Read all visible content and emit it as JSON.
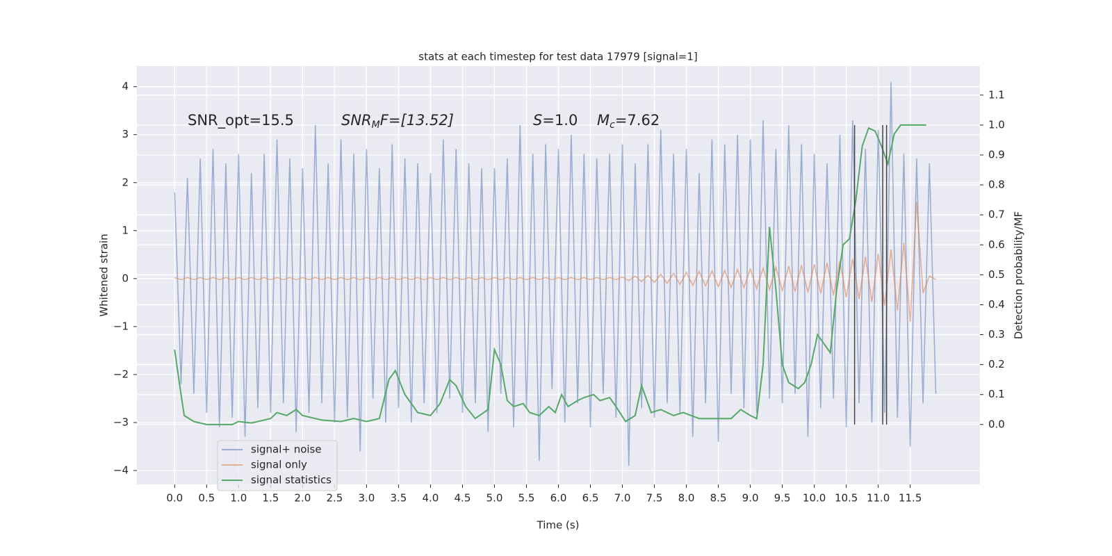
{
  "chart_data": {
    "type": "line",
    "title": "stats at each timestep for test data 17979 [signal=1]",
    "xlabel": "Time (s)",
    "ylabel": "Whitened strain",
    "y2label": "Detection probability/MF",
    "xlim": [
      -0.59,
      12.59
    ],
    "ylim": [
      -4.29,
      4.43
    ],
    "y2lim": [
      -0.2,
      1.197
    ],
    "xticks": [
      {
        "value": 0,
        "label": "0.0"
      },
      0.5,
      {
        "value": 1,
        "label": "1.0"
      },
      1.5,
      {
        "value": 2,
        "label": "2.0"
      },
      2.5,
      {
        "value": 3,
        "label": "3.0"
      },
      3.5,
      {
        "value": 4,
        "label": "4.0"
      },
      4.5,
      {
        "value": 5,
        "label": "5.0"
      },
      5.5,
      {
        "value": 6,
        "label": "6.0"
      },
      6.5,
      {
        "value": 7,
        "label": "7.0"
      },
      7.5,
      {
        "value": 8,
        "label": "8.0"
      },
      8.5,
      {
        "value": 9,
        "label": "9.0"
      },
      9.5,
      {
        "value": 10,
        "label": "10.0"
      },
      10.5,
      {
        "value": 11,
        "label": "11.0"
      },
      11.5
    ],
    "yticks": [
      {
        "value": -4,
        "label": "−4"
      },
      {
        "value": -3,
        "label": "−3"
      },
      {
        "value": -2,
        "label": "−2"
      },
      {
        "value": -1,
        "label": "−1"
      },
      0,
      1,
      2,
      3,
      4
    ],
    "y2ticks": [
      {
        "value": 0,
        "label": "0.0"
      },
      0.1,
      0.2,
      0.3,
      0.4,
      0.5,
      0.6,
      0.7,
      0.8,
      0.9,
      {
        "value": 1,
        "label": "1.0"
      },
      1.1
    ],
    "grid": true,
    "legend": "lower left",
    "annotations": [
      {
        "rest": "SNR_opt=15.5"
      },
      {
        "base": "SNR",
        "sub": "M",
        "rest": "F=[13.52]"
      },
      {
        "base": "S",
        "rest": "=1.0"
      },
      {
        "base": "M",
        "sub": "c",
        "rest": "=7.62"
      }
    ],
    "vlines": {
      "color": "#444444",
      "x": [
        10.63,
        11.07,
        11.13
      ],
      "span": [
        0,
        1
      ]
    },
    "series": [
      {
        "name": "signal+ noise",
        "color": "#4c72b0",
        "x": [
          0,
          0.1,
          0.2,
          0.3,
          0.4,
          0.5,
          0.6,
          0.7,
          0.8,
          0.9,
          1,
          1.1,
          1.2,
          1.3,
          1.4,
          1.5,
          1.6,
          1.7,
          1.8,
          1.9,
          2,
          2.1,
          2.2,
          2.3,
          2.4,
          2.5,
          2.6,
          2.7,
          2.8,
          2.9,
          3,
          3.1,
          3.2,
          3.3,
          3.4,
          3.5,
          3.6,
          3.7,
          3.8,
          3.9,
          4,
          4.1,
          4.2,
          4.3,
          4.4,
          4.5,
          4.6,
          4.7,
          4.8,
          4.9,
          5,
          5.1,
          5.2,
          5.3,
          5.4,
          5.5,
          5.6,
          5.7,
          5.8,
          5.9,
          6,
          6.1,
          6.2,
          6.3,
          6.4,
          6.5,
          6.6,
          6.7,
          6.8,
          6.9,
          7,
          7.1,
          7.2,
          7.3,
          7.4,
          7.5,
          7.6,
          7.7,
          7.8,
          7.9,
          8,
          8.1,
          8.2,
          8.3,
          8.4,
          8.5,
          8.6,
          8.7,
          8.8,
          8.9,
          9,
          9.1,
          9.2,
          9.3,
          9.4,
          9.5,
          9.6,
          9.7,
          9.8,
          9.9,
          10,
          10.1,
          10.2,
          10.3,
          10.4,
          10.5,
          10.6,
          10.7,
          10.8,
          10.9,
          11,
          11.1,
          11.2,
          11.3,
          11.4,
          11.5,
          11.6,
          11.7,
          11.8,
          11.9
        ],
        "values": [
          1.8,
          -2.2,
          2.1,
          -2.4,
          2.5,
          -2.8,
          2.7,
          -3.1,
          2.4,
          -2.9,
          2.6,
          -3.3,
          2.2,
          -2.7,
          2.6,
          -2.8,
          2.9,
          -2.6,
          2.5,
          -3.2,
          2.3,
          -2.8,
          3.2,
          -2.6,
          2.4,
          -3.0,
          2.9,
          -2.9,
          2.6,
          -3.6,
          2.7,
          -2.5,
          2.3,
          -3.0,
          2.8,
          -2.7,
          2.5,
          -3.0,
          2.4,
          -2.6,
          2.2,
          -2.8,
          2.9,
          -2.5,
          2.7,
          -2.8,
          2.4,
          -2.6,
          2.3,
          -3.2,
          2.3,
          -2.4,
          2.5,
          -3.1,
          3.2,
          -2.7,
          2.6,
          -3.8,
          2.8,
          -2.3,
          2.7,
          -3.0,
          3.0,
          -2.6,
          2.6,
          -3.1,
          2.5,
          -2.4,
          2.6,
          -2.9,
          2.8,
          -3.9,
          2.4,
          -2.7,
          2.8,
          -2.9,
          3.1,
          -2.6,
          2.6,
          -2.8,
          2.7,
          -3.3,
          2.2,
          -2.6,
          2.9,
          -3.4,
          2.8,
          -2.4,
          3.0,
          -2.7,
          2.9,
          -2.8,
          3.3,
          -2.5,
          2.7,
          -2.6,
          3.2,
          -2.4,
          2.8,
          -3.3,
          2.6,
          -2.7,
          2.4,
          -2.5,
          3.0,
          -3.1,
          3.3,
          -2.6,
          2.7,
          -3.0,
          3.1,
          -2.8,
          4.1,
          -2.9,
          2.6,
          -3.5,
          2.5,
          -2.6,
          2.4,
          -2.4
        ]
      },
      {
        "name": "signal only",
        "color": "#dd8452",
        "x": [
          0,
          0.1,
          0.2,
          0.3,
          0.4,
          0.5,
          0.6,
          0.7,
          0.8,
          0.9,
          1,
          1.1,
          1.2,
          1.3,
          1.4,
          1.5,
          1.6,
          1.7,
          1.8,
          1.9,
          2,
          2.1,
          2.2,
          2.3,
          2.4,
          2.5,
          2.6,
          2.7,
          2.8,
          2.9,
          3,
          3.1,
          3.2,
          3.3,
          3.4,
          3.5,
          3.6,
          3.7,
          3.8,
          3.9,
          4,
          4.1,
          4.2,
          4.3,
          4.4,
          4.5,
          4.6,
          4.7,
          4.8,
          4.9,
          5,
          5.1,
          5.2,
          5.3,
          5.4,
          5.5,
          5.6,
          5.7,
          5.8,
          5.9,
          6,
          6.1,
          6.2,
          6.3,
          6.4,
          6.5,
          6.6,
          6.7,
          6.8,
          6.9,
          7,
          7.1,
          7.2,
          7.3,
          7.4,
          7.5,
          7.6,
          7.7,
          7.8,
          7.9,
          8,
          8.1,
          8.2,
          8.3,
          8.4,
          8.5,
          8.6,
          8.7,
          8.8,
          8.9,
          9,
          9.1,
          9.2,
          9.3,
          9.4,
          9.5,
          9.6,
          9.7,
          9.8,
          9.9,
          10,
          10.1,
          10.2,
          10.3,
          10.4,
          10.5,
          10.6,
          10.7,
          10.8,
          10.9,
          11,
          11.1,
          11.2,
          11.3,
          11.4,
          11.5,
          11.6,
          11.7,
          11.8,
          11.9
        ],
        "values": [
          0.02,
          -0.02,
          0.02,
          -0.02,
          0.02,
          -0.02,
          0.02,
          -0.02,
          0.02,
          -0.02,
          0.02,
          -0.02,
          0.02,
          -0.02,
          0.02,
          -0.02,
          0.02,
          -0.02,
          0.02,
          -0.02,
          0.02,
          -0.02,
          0.02,
          -0.02,
          0.02,
          -0.02,
          0.02,
          -0.02,
          0.02,
          -0.02,
          0.02,
          -0.02,
          0.02,
          -0.02,
          0.02,
          -0.02,
          0.02,
          -0.02,
          0.02,
          -0.02,
          0.02,
          -0.02,
          0.02,
          -0.02,
          0.02,
          -0.02,
          0.02,
          -0.02,
          0.02,
          -0.02,
          0.02,
          -0.02,
          0.02,
          -0.02,
          0.02,
          -0.02,
          0.02,
          -0.02,
          0.02,
          -0.02,
          0.02,
          -0.02,
          0.02,
          -0.02,
          0.02,
          -0.02,
          0.02,
          -0.02,
          0.02,
          -0.02,
          0.03,
          -0.04,
          0.05,
          -0.06,
          0.07,
          -0.08,
          0.09,
          -0.1,
          0.11,
          -0.12,
          0.13,
          -0.14,
          0.15,
          -0.15,
          0.16,
          -0.17,
          0.17,
          -0.18,
          0.19,
          -0.19,
          0.2,
          -0.21,
          0.22,
          -0.23,
          0.24,
          -0.25,
          0.26,
          -0.27,
          0.28,
          -0.29,
          0.3,
          -0.31,
          0.33,
          -0.35,
          0.37,
          -0.39,
          0.41,
          -0.43,
          0.46,
          -0.49,
          0.52,
          -0.56,
          0.61,
          -0.67,
          0.75,
          -0.9,
          1.6,
          -0.3,
          0.05,
          -0.02
        ]
      },
      {
        "name": "signal statistics",
        "color": "#55a868",
        "axis": "y2",
        "x": [
          0,
          0.1,
          0.15,
          0.3,
          0.5,
          0.7,
          0.9,
          1.0,
          1.2,
          1.3,
          1.5,
          1.6,
          1.75,
          1.9,
          2.0,
          2.3,
          2.6,
          2.8,
          3.0,
          3.2,
          3.35,
          3.45,
          3.6,
          3.8,
          4.0,
          4.15,
          4.3,
          4.4,
          4.55,
          4.7,
          4.9,
          5.0,
          5.1,
          5.2,
          5.3,
          5.45,
          5.55,
          5.7,
          5.85,
          5.95,
          6.05,
          6.15,
          6.3,
          6.4,
          6.55,
          6.65,
          6.8,
          6.9,
          7.05,
          7.2,
          7.3,
          7.45,
          7.6,
          7.8,
          7.95,
          8.2,
          8.5,
          8.7,
          8.85,
          9.0,
          9.1,
          9.2,
          9.3,
          9.4,
          9.5,
          9.6,
          9.75,
          9.85,
          9.95,
          10.05,
          10.15,
          10.25,
          10.35,
          10.45,
          10.55,
          10.65,
          10.75,
          10.85,
          10.95,
          11.05,
          11.15,
          11.25,
          11.35,
          11.5,
          11.75
        ],
        "values": [
          0.25,
          0.1,
          0.03,
          0.01,
          0.0,
          0.0,
          0.0,
          0.01,
          0.005,
          0.01,
          0.02,
          0.04,
          0.03,
          0.05,
          0.03,
          0.015,
          0.01,
          0.02,
          0.01,
          0.02,
          0.15,
          0.18,
          0.1,
          0.04,
          0.03,
          0.07,
          0.15,
          0.13,
          0.06,
          0.02,
          0.05,
          0.25,
          0.2,
          0.08,
          0.06,
          0.07,
          0.04,
          0.03,
          0.06,
          0.04,
          0.1,
          0.06,
          0.08,
          0.09,
          0.1,
          0.08,
          0.09,
          0.06,
          0.01,
          0.03,
          0.13,
          0.04,
          0.05,
          0.03,
          0.04,
          0.02,
          0.02,
          0.02,
          0.05,
          0.03,
          0.02,
          0.2,
          0.66,
          0.45,
          0.2,
          0.14,
          0.12,
          0.14,
          0.2,
          0.3,
          0.27,
          0.24,
          0.45,
          0.6,
          0.62,
          0.75,
          0.93,
          0.99,
          0.98,
          0.93,
          0.87,
          0.97,
          1.0,
          1.0,
          1.0
        ]
      }
    ]
  }
}
